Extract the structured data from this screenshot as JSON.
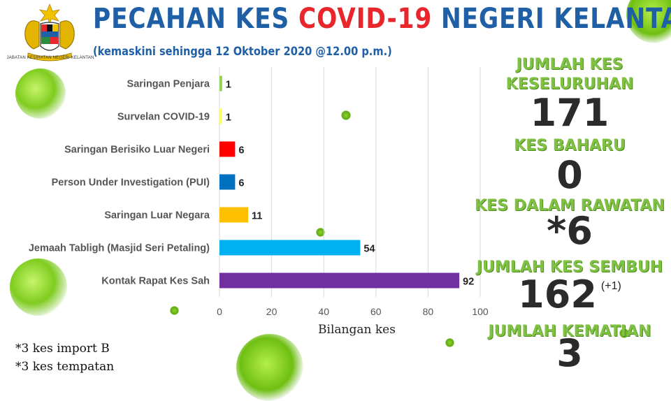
{
  "header": {
    "title_part1": "PECAHAN KES ",
    "title_highlight": "COVID-19",
    "title_part2": " NEGERI KELANTAN",
    "subtitle": "(kemaskini sehingga 12 Oktober 2020 @12.00 p.m.)",
    "logo_caption": "JABATAN KESIHATAN NEGERI KELANTAN"
  },
  "chart_data": {
    "type": "bar",
    "orientation": "horizontal",
    "categories": [
      "Saringan Penjara",
      "Survelan COVID-19",
      "Saringan Berisiko Luar Negeri",
      "Person Under Investigation (PUI)",
      "Saringan Luar Negara",
      "Jemaah Tabligh (Masjid Seri Petaling)",
      "Kontak Rapat Kes Sah"
    ],
    "values": [
      1,
      1,
      6,
      6,
      11,
      54,
      92
    ],
    "colors": [
      "#92d050",
      "#ffff66",
      "#ff0000",
      "#0070c0",
      "#ffc000",
      "#00b0f0",
      "#7030a0"
    ],
    "xlabel": "Bilangan kes",
    "ylabel": "",
    "xlim": [
      0,
      100
    ],
    "xticks": [
      0,
      20,
      40,
      60,
      80,
      100
    ],
    "grid": true
  },
  "stats": {
    "total_title_line1": "JUMLAH KES",
    "total_title_line2": "KESELURUHAN",
    "total_value": "171",
    "new_title": "KES BAHARU",
    "new_value": "0",
    "treatment_title": "KES DALAM RAWATAN",
    "treatment_value": "*6",
    "recovered_title": "JUMLAH KES SEMBUH",
    "recovered_value": "162",
    "recovered_note": "(+1)",
    "deaths_title": "JUMLAH KEMATIAN",
    "deaths_value": "3"
  },
  "footnotes": {
    "line1": "*3 kes import B",
    "line2": "*3 kes tempatan"
  },
  "colors": {
    "title_blue": "#1f5fa6",
    "title_red": "#e8262c",
    "stat_green": "#7fc243",
    "virus_green": "#7fcc1f"
  },
  "icons": [
    "coat-of-arms-logo",
    "virus-icon"
  ]
}
